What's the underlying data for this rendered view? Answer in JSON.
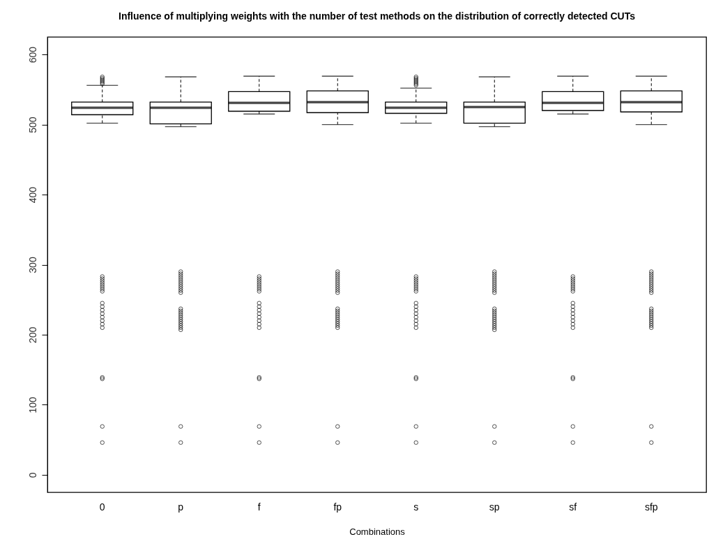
{
  "chart_data": {
    "type": "box",
    "title": "Influence of multiplying weights with the number of test methods on the distribution of correctly detected CUTs",
    "xlabel": "Combinations",
    "categories": [
      "0",
      "p",
      "f",
      "fp",
      "s",
      "sp",
      "sf",
      "sfp"
    ],
    "ylim": [
      -25,
      625
    ],
    "yticks": [
      0,
      100,
      200,
      300,
      400,
      500,
      600
    ],
    "grid": false,
    "marker": "circle",
    "boxes": [
      {
        "low": 502,
        "q1": 514,
        "median": 524,
        "q3": 532,
        "high": 556,
        "outliers": [
          558,
          560,
          562,
          564,
          566,
          568,
          283,
          280,
          277,
          274,
          271,
          268,
          265,
          262,
          245,
          240,
          235,
          230,
          225,
          220,
          215,
          210,
          139,
          137,
          69,
          46
        ]
      },
      {
        "low": 497,
        "q1": 501,
        "median": 524,
        "q3": 532,
        "high": 568,
        "outliers": [
          290,
          287,
          284,
          281,
          278,
          275,
          272,
          269,
          266,
          263,
          260,
          237,
          234,
          231,
          228,
          225,
          222,
          219,
          216,
          213,
          210,
          207,
          69,
          46
        ]
      },
      {
        "low": 515,
        "q1": 519,
        "median": 531,
        "q3": 547,
        "high": 569,
        "outliers": [
          283,
          280,
          277,
          274,
          271,
          268,
          265,
          262,
          245,
          240,
          235,
          230,
          225,
          220,
          215,
          210,
          139,
          137,
          69,
          46
        ]
      },
      {
        "low": 500,
        "q1": 517,
        "median": 532,
        "q3": 548,
        "high": 569,
        "outliers": [
          290,
          287,
          284,
          281,
          278,
          275,
          272,
          269,
          266,
          263,
          260,
          237,
          234,
          231,
          228,
          225,
          222,
          219,
          216,
          213,
          210,
          69,
          46
        ]
      },
      {
        "low": 502,
        "q1": 516,
        "median": 524,
        "q3": 532,
        "high": 552,
        "outliers": [
          556,
          558,
          560,
          562,
          564,
          566,
          568,
          283,
          280,
          277,
          274,
          271,
          268,
          265,
          262,
          245,
          240,
          235,
          230,
          225,
          220,
          215,
          210,
          139,
          137,
          69,
          46
        ]
      },
      {
        "low": 497,
        "q1": 502,
        "median": 525,
        "q3": 532,
        "high": 568,
        "outliers": [
          290,
          287,
          284,
          281,
          278,
          275,
          272,
          269,
          266,
          263,
          260,
          237,
          234,
          231,
          228,
          225,
          222,
          219,
          216,
          213,
          210,
          207,
          69,
          46
        ]
      },
      {
        "low": 515,
        "q1": 520,
        "median": 531,
        "q3": 547,
        "high": 569,
        "outliers": [
          283,
          280,
          277,
          274,
          271,
          268,
          265,
          262,
          245,
          240,
          235,
          230,
          225,
          220,
          215,
          210,
          139,
          137,
          69,
          46
        ]
      },
      {
        "low": 500,
        "q1": 518,
        "median": 532,
        "q3": 548,
        "high": 569,
        "outliers": [
          290,
          287,
          284,
          281,
          278,
          275,
          272,
          269,
          266,
          263,
          260,
          237,
          234,
          231,
          228,
          225,
          222,
          219,
          216,
          213,
          210,
          69,
          46
        ]
      }
    ]
  }
}
